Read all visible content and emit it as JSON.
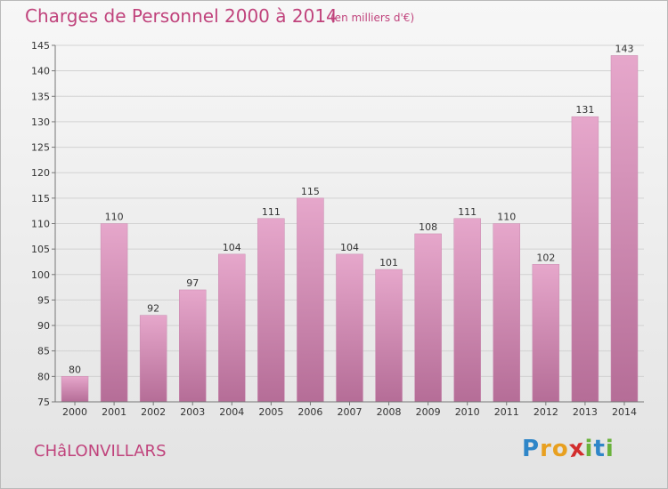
{
  "header": {
    "title": "Charges de Personnel 2000 à 2014",
    "subtitle": "(en milliers d'€)"
  },
  "footer": {
    "commune": "CHâLONVILLARS",
    "logo_letters": [
      {
        "char": "P",
        "color": "#2f86c8"
      },
      {
        "char": "r",
        "color": "#e8a020"
      },
      {
        "char": "o",
        "color": "#e8a020"
      },
      {
        "char": "x",
        "color": "#d22d2d"
      },
      {
        "char": "i",
        "color": "#6ab23c"
      },
      {
        "char": "t",
        "color": "#2f86c8"
      },
      {
        "char": "i",
        "color": "#6ab23c"
      }
    ]
  },
  "colors": {
    "title": "#c0437c",
    "bar_top": "#e6a7cb",
    "bar_bottom": "#b56d97",
    "grid": "#d2d2d2",
    "axis": "#777777",
    "text": "#333333"
  },
  "chart_data": {
    "type": "bar",
    "title": "Charges de Personnel 2000 à 2014",
    "subtitle": "(en milliers d'€)",
    "xlabel": "",
    "ylabel": "",
    "categories": [
      "2000",
      "2001",
      "2002",
      "2003",
      "2004",
      "2005",
      "2006",
      "2007",
      "2008",
      "2009",
      "2010",
      "2011",
      "2012",
      "2013",
      "2014"
    ],
    "values": [
      80,
      110,
      92,
      97,
      104,
      111,
      115,
      104,
      101,
      108,
      111,
      110,
      102,
      131,
      143
    ],
    "ylim": [
      75,
      145
    ],
    "yticks": [
      75,
      80,
      85,
      90,
      95,
      100,
      105,
      110,
      115,
      120,
      125,
      130,
      135,
      140,
      145
    ],
    "grid": true,
    "legend": "none",
    "data_labels": true
  }
}
